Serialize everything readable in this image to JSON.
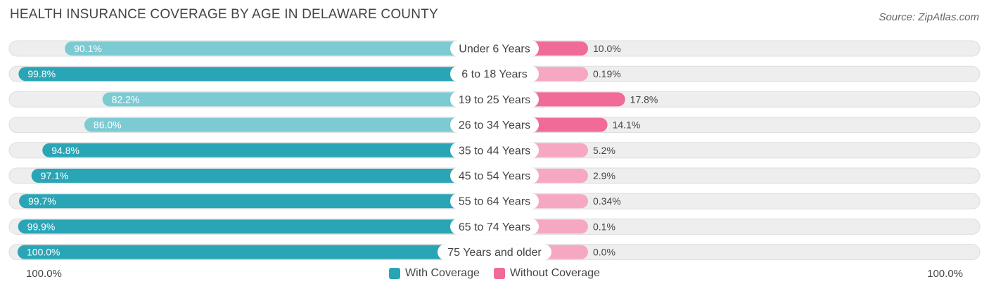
{
  "header": {
    "title": "HEALTH INSURANCE COVERAGE BY AGE IN DELAWARE COUNTY",
    "source": "Source: ZipAtlas.com"
  },
  "axis": {
    "left_label": "100.0%",
    "right_label": "100.0%"
  },
  "legend": {
    "with_label": "With Coverage",
    "without_label": "Without Coverage"
  },
  "colors": {
    "with_strong": "#2aa5b6",
    "with_light": "#7ccbd3",
    "without_strong": "#f06b97",
    "without_light": "#f6a8c2",
    "track": "#eeeeee",
    "track_border": "#dddddd"
  },
  "chart_data": {
    "type": "bar",
    "orientation": "diverging-horizontal",
    "title": "HEALTH INSURANCE COVERAGE BY AGE IN DELAWARE COUNTY",
    "xlim": [
      -100,
      100
    ],
    "categories": [
      "Under 6 Years",
      "6 to 18 Years",
      "19 to 25 Years",
      "26 to 34 Years",
      "35 to 44 Years",
      "45 to 54 Years",
      "55 to 64 Years",
      "65 to 74 Years",
      "75 Years and older"
    ],
    "series": [
      {
        "name": "With Coverage",
        "values": [
          90.1,
          99.8,
          82.2,
          86.0,
          94.8,
          97.1,
          99.7,
          99.9,
          100.0
        ],
        "labels": [
          "90.1%",
          "99.8%",
          "82.2%",
          "86.0%",
          "94.8%",
          "97.1%",
          "99.7%",
          "99.9%",
          "100.0%"
        ]
      },
      {
        "name": "Without Coverage",
        "values": [
          10.0,
          0.19,
          17.8,
          14.1,
          5.2,
          2.9,
          0.34,
          0.1,
          0.0
        ],
        "labels": [
          "10.0%",
          "0.19%",
          "17.8%",
          "14.1%",
          "5.2%",
          "2.9%",
          "0.34%",
          "0.1%",
          "0.0%"
        ]
      }
    ],
    "legend_position": "bottom-center"
  }
}
